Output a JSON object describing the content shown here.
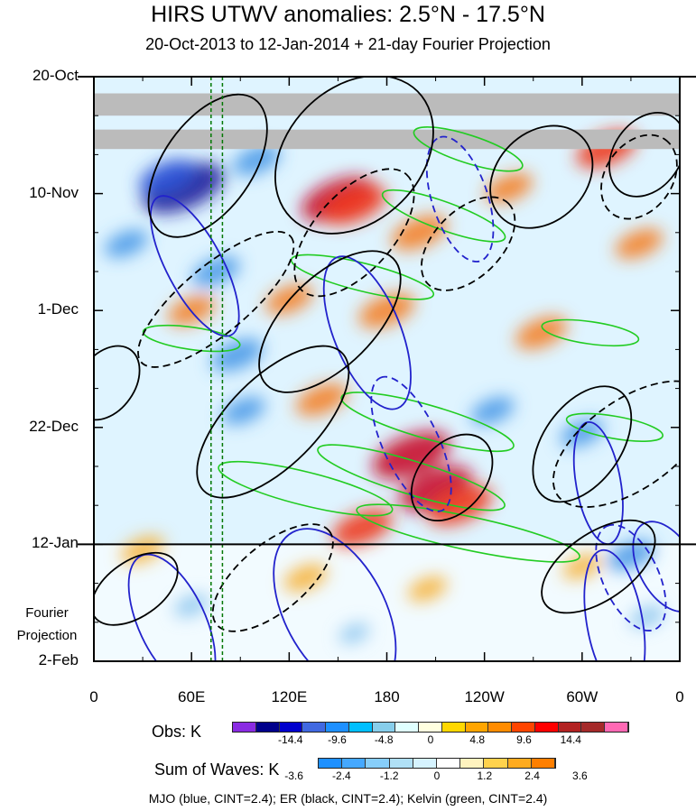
{
  "chart_data": {
    "type": "heatmap",
    "title": "HIRS UTWV anomalies: 2.5°N - 17.5°N",
    "subtitle": "20-Oct-2013 to 12-Jan-2014 + 21-day Fourier Projection",
    "y_labels": [
      "20-Oct",
      "10-Nov",
      "1-Dec",
      "22-Dec",
      "12-Jan",
      "2-Feb"
    ],
    "y_day_offsets": [
      0,
      21,
      42,
      63,
      84,
      105
    ],
    "y_range_days": [
      0,
      105
    ],
    "x_labels": [
      "0",
      "60E",
      "120E",
      "180",
      "120W",
      "60W",
      "0"
    ],
    "x_longitudes": [
      0,
      60,
      120,
      180,
      240,
      300,
      360
    ],
    "x_range": [
      0,
      360
    ],
    "projection_start_day": 84,
    "fourier_label": [
      "Fourier",
      "Projection"
    ],
    "obs_colorbar": {
      "label": "Obs: K",
      "colors": [
        "#8a2be2",
        "#00008b",
        "#0000cd",
        "#4169e1",
        "#1e90ff",
        "#00bfff",
        "#87ceeb",
        "#e0ffff",
        "#ffffe0",
        "#ffd700",
        "#ffa500",
        "#ff8c00",
        "#ff4500",
        "#ff0000",
        "#b22222",
        "#a52a2a",
        "#ff69b4"
      ],
      "tick_labels": [
        "-14.4",
        "-9.6",
        "-4.8",
        "0",
        "4.8",
        "9.6",
        "14.4"
      ]
    },
    "waves_colorbar": {
      "label": "Sum of Waves: K",
      "colors": [
        "#1e90ff",
        "#45a8ff",
        "#87cefa",
        "#b0e0f6",
        "#d6f3ff",
        "#ffffff",
        "#fff3bf",
        "#ffd24d",
        "#ffab1f",
        "#ff7f00"
      ],
      "tick_labels": [
        "-3.6",
        "-2.4",
        "-1.2",
        "0",
        "1.2",
        "2.4",
        "3.6"
      ]
    },
    "vertical_reference_lines_lon": [
      72,
      79
    ],
    "missing_data_bands_days": [
      [
        3,
        7
      ],
      [
        9.5,
        13
      ]
    ],
    "legend_text": "MJO (blue, CINT=2.4); ER (black, CINT=2.4); Kelvin (green, CINT=2.4)",
    "series_colors": {
      "mjo": "#2222cc",
      "er": "#000000",
      "kelvin": "#22cc22",
      "reference": "#007700",
      "missing": "#bbbbbb"
    },
    "anomaly_blobs": [
      {
        "lon": 55,
        "day": 20,
        "value": -14
      },
      {
        "lon": 45,
        "day": 18,
        "value": -8
      },
      {
        "lon": 75,
        "day": 35,
        "value": -6
      },
      {
        "lon": 88,
        "day": 50,
        "value": -7
      },
      {
        "lon": 92,
        "day": 60,
        "value": -5
      },
      {
        "lon": 150,
        "day": 22,
        "value": 12
      },
      {
        "lon": 160,
        "day": 23,
        "value": 10
      },
      {
        "lon": 195,
        "day": 68,
        "value": 13
      },
      {
        "lon": 210,
        "day": 74,
        "value": 12
      },
      {
        "lon": 225,
        "day": 77,
        "value": 10
      },
      {
        "lon": 165,
        "day": 81,
        "value": 9
      },
      {
        "lon": 140,
        "day": 58,
        "value": 7
      },
      {
        "lon": 120,
        "day": 40,
        "value": 6
      },
      {
        "lon": 200,
        "day": 28,
        "value": 8
      },
      {
        "lon": 275,
        "day": 46,
        "value": 7
      },
      {
        "lon": 315,
        "day": 13,
        "value": 9
      },
      {
        "lon": 335,
        "day": 30,
        "value": 6
      },
      {
        "lon": 255,
        "day": 20,
        "value": 6
      },
      {
        "lon": 180,
        "day": 42,
        "value": 8
      },
      {
        "lon": 60,
        "day": 42,
        "value": 6
      },
      {
        "lon": 30,
        "day": 85,
        "value": 5
      },
      {
        "lon": 100,
        "day": 15,
        "value": -6
      },
      {
        "lon": 245,
        "day": 60,
        "value": -5
      },
      {
        "lon": 300,
        "day": 64,
        "value": -5
      },
      {
        "lon": 330,
        "day": 86,
        "value": -6
      },
      {
        "lon": 20,
        "day": 30,
        "value": -5
      },
      {
        "lon": 130,
        "day": 90,
        "value": 5
      },
      {
        "lon": 205,
        "day": 92,
        "value": 4
      },
      {
        "lon": 60,
        "day": 95,
        "value": -3
      },
      {
        "lon": 160,
        "day": 100,
        "value": -2
      },
      {
        "lon": 300,
        "day": 88,
        "value": 4
      },
      {
        "lon": 340,
        "day": 97,
        "value": -3
      }
    ],
    "mjo_contours": [
      {
        "lon": 62,
        "day": 34,
        "rx": 48,
        "ry": 5,
        "rot": -118,
        "dashed": false
      },
      {
        "lon": 48,
        "day": 98,
        "rx": 45,
        "ry": 6,
        "rot": -115,
        "dashed": false
      },
      {
        "lon": 195,
        "day": 66,
        "rx": 45,
        "ry": 5,
        "rot": -115,
        "dashed": true
      },
      {
        "lon": 168,
        "day": 46,
        "rx": 50,
        "ry": 6,
        "rot": -112,
        "dashed": false
      },
      {
        "lon": 148,
        "day": 96,
        "rx": 55,
        "ry": 9,
        "rot": -118,
        "dashed": false
      },
      {
        "lon": 225,
        "day": 22,
        "rx": 40,
        "ry": 5,
        "rot": -108,
        "dashed": true
      },
      {
        "lon": 320,
        "day": 98,
        "rx": 45,
        "ry": 5,
        "rot": -100,
        "dashed": false
      },
      {
        "lon": 310,
        "day": 73,
        "rx": 38,
        "ry": 4,
        "rot": -100,
        "dashed": false
      },
      {
        "lon": 330,
        "day": 90,
        "rx": 35,
        "ry": 5,
        "rot": -115,
        "dashed": true
      },
      {
        "lon": 352,
        "day": 88,
        "rx": 30,
        "ry": 5,
        "rot": -118,
        "dashed": false
      }
    ],
    "er_contours": [
      {
        "lon": 70,
        "day": 16,
        "rx": 50,
        "ry": 8,
        "rot": -55,
        "dashed": false
      },
      {
        "lon": 75,
        "day": 40,
        "rx": 60,
        "ry": 6,
        "rot": -40,
        "dashed": true
      },
      {
        "lon": 160,
        "day": 14,
        "rx": 55,
        "ry": 12,
        "rot": -45,
        "dashed": false
      },
      {
        "lon": 160,
        "day": 28,
        "rx": 48,
        "ry": 7,
        "rot": -48,
        "dashed": true
      },
      {
        "lon": 145,
        "day": 44,
        "rx": 55,
        "ry": 8,
        "rot": -45,
        "dashed": false
      },
      {
        "lon": 110,
        "day": 62,
        "rx": 60,
        "ry": 8,
        "rot": -45,
        "dashed": false
      },
      {
        "lon": 230,
        "day": 30,
        "rx": 35,
        "ry": 6,
        "rot": -45,
        "dashed": true
      },
      {
        "lon": 220,
        "day": 72,
        "rx": 30,
        "ry": 6,
        "rot": -50,
        "dashed": false
      },
      {
        "lon": 275,
        "day": 18,
        "rx": 35,
        "ry": 8,
        "rot": -45,
        "dashed": false
      },
      {
        "lon": 300,
        "day": 66,
        "rx": 40,
        "ry": 7,
        "rot": -55,
        "dashed": false
      },
      {
        "lon": 330,
        "day": 66,
        "rx": 55,
        "ry": 8,
        "rot": -35,
        "dashed": true
      },
      {
        "lon": 335,
        "day": 18,
        "rx": 28,
        "ry": 6,
        "rot": -55,
        "dashed": true
      },
      {
        "lon": 340,
        "day": 14,
        "rx": 28,
        "ry": 6,
        "rot": -55,
        "dashed": false
      },
      {
        "lon": 25,
        "day": 92,
        "rx": 30,
        "ry": 5,
        "rot": -35,
        "dashed": false
      },
      {
        "lon": 110,
        "day": 90,
        "rx": 45,
        "ry": 6,
        "rot": -40,
        "dashed": true
      },
      {
        "lon": 310,
        "day": 88,
        "rx": 40,
        "ry": 6,
        "rot": -35,
        "dashed": false
      },
      {
        "lon": 8,
        "day": 55,
        "rx": 25,
        "ry": 5,
        "rot": -55,
        "dashed": false
      }
    ],
    "kelvin_contours": [
      {
        "lon": 230,
        "day": 13,
        "rx": 35,
        "ry": 2.5,
        "rot": 18,
        "dashed": false
      },
      {
        "lon": 215,
        "day": 25,
        "rx": 40,
        "ry": 2.5,
        "rot": 20,
        "dashed": false
      },
      {
        "lon": 165,
        "day": 36,
        "rx": 45,
        "ry": 2.5,
        "rot": 14,
        "dashed": false
      },
      {
        "lon": 205,
        "day": 62,
        "rx": 55,
        "ry": 3,
        "rot": 16,
        "dashed": false
      },
      {
        "lon": 195,
        "day": 72,
        "rx": 60,
        "ry": 3,
        "rot": 17,
        "dashed": false
      },
      {
        "lon": 130,
        "day": 74,
        "rx": 55,
        "ry": 3,
        "rot": 14,
        "dashed": false
      },
      {
        "lon": 230,
        "day": 82,
        "rx": 70,
        "ry": 3,
        "rot": 12,
        "dashed": false
      },
      {
        "lon": 305,
        "day": 46,
        "rx": 30,
        "ry": 2,
        "rot": 8,
        "dashed": false
      },
      {
        "lon": 320,
        "day": 63,
        "rx": 30,
        "ry": 2,
        "rot": 10,
        "dashed": false
      },
      {
        "lon": 60,
        "day": 47,
        "rx": 30,
        "ry": 2,
        "rot": 8,
        "dashed": false
      }
    ]
  }
}
